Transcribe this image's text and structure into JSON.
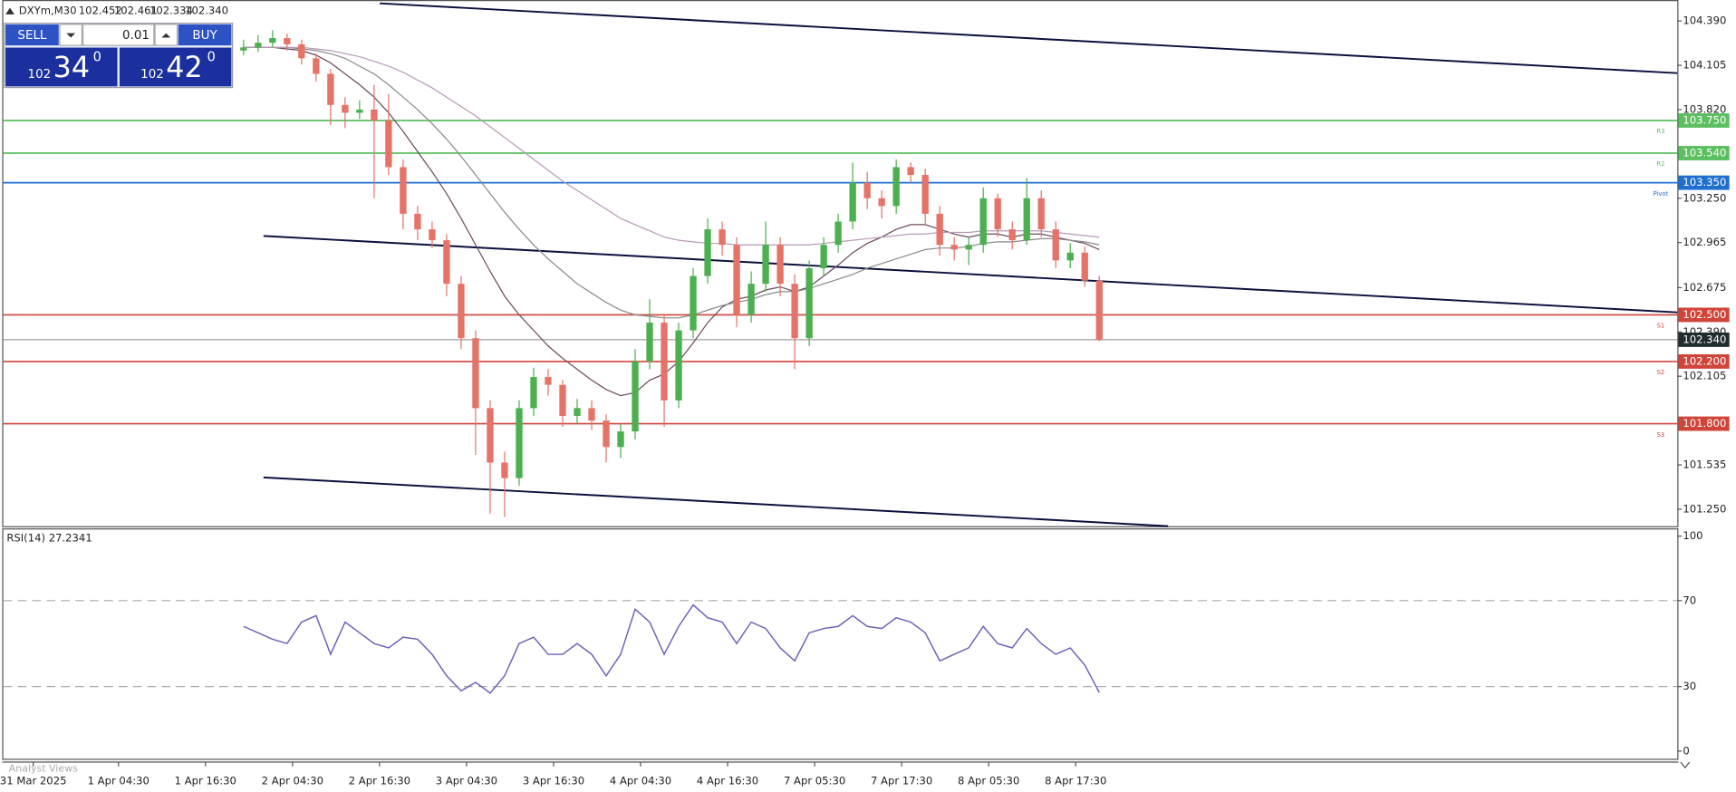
{
  "header": {
    "symbol": "DXYm,M30",
    "ohlc": [
      "102.452",
      "102.461",
      "102.334",
      "102.340"
    ]
  },
  "trade_panel": {
    "sell": "SELL",
    "buy": "BUY",
    "volume": "0.01",
    "sell_price": {
      "big": "102",
      "pips": "34",
      "sup": "0"
    },
    "buy_price": {
      "big": "102",
      "pips": "42",
      "sup": "0"
    }
  },
  "price_chart": {
    "type": "candlestick",
    "ylim": [
      101.141,
      104.525
    ],
    "yticks": [
      {
        "value": 104.39,
        "label": "104.390"
      },
      {
        "value": 104.105,
        "label": "104.105"
      },
      {
        "value": 103.82,
        "label": "103.820"
      },
      {
        "value": 103.25,
        "label": "103.250"
      },
      {
        "value": 102.965,
        "label": "102.965"
      },
      {
        "value": 102.675,
        "label": "102.675"
      },
      {
        "value": 102.39,
        "label": "102.390"
      },
      {
        "value": 102.105,
        "label": "102.105"
      },
      {
        "value": 101.535,
        "label": "101.535"
      },
      {
        "value": 101.25,
        "label": "101.250"
      }
    ],
    "bull_color": "#4caf50",
    "bear_color": "#e57368",
    "candles": [
      [
        104.2,
        104.27,
        104.17,
        104.22
      ],
      [
        104.22,
        104.3,
        104.19,
        104.25
      ],
      [
        104.25,
        104.33,
        104.22,
        104.28
      ],
      [
        104.28,
        104.31,
        104.2,
        104.24
      ],
      [
        104.24,
        104.27,
        104.11,
        104.15
      ],
      [
        104.15,
        104.18,
        104.0,
        104.05
      ],
      [
        104.05,
        104.08,
        103.72,
        103.85
      ],
      [
        103.85,
        103.9,
        103.7,
        103.8
      ],
      [
        103.8,
        103.88,
        103.76,
        103.82
      ],
      [
        103.82,
        103.98,
        103.25,
        103.75
      ],
      [
        103.75,
        103.92,
        103.4,
        103.45
      ],
      [
        103.45,
        103.5,
        103.05,
        103.15
      ],
      [
        103.15,
        103.2,
        102.98,
        103.05
      ],
      [
        103.05,
        103.1,
        102.93,
        102.98
      ],
      [
        102.98,
        103.02,
        102.62,
        102.7
      ],
      [
        102.7,
        102.75,
        102.28,
        102.35
      ],
      [
        102.35,
        102.4,
        101.6,
        101.9
      ],
      [
        101.9,
        101.95,
        101.22,
        101.55
      ],
      [
        101.55,
        101.62,
        101.2,
        101.45
      ],
      [
        101.45,
        101.95,
        101.4,
        101.9
      ],
      [
        101.9,
        102.16,
        101.85,
        102.1
      ],
      [
        102.1,
        102.15,
        101.98,
        102.05
      ],
      [
        102.05,
        102.08,
        101.78,
        101.85
      ],
      [
        101.85,
        101.96,
        101.8,
        101.9
      ],
      [
        101.9,
        101.95,
        101.76,
        101.82
      ],
      [
        101.82,
        101.86,
        101.55,
        101.65
      ],
      [
        101.65,
        101.8,
        101.58,
        101.75
      ],
      [
        101.75,
        102.28,
        101.7,
        102.2
      ],
      [
        102.2,
        102.6,
        102.15,
        102.45
      ],
      [
        102.45,
        102.5,
        101.78,
        101.95
      ],
      [
        101.95,
        102.45,
        101.9,
        102.4
      ],
      [
        102.4,
        102.8,
        102.35,
        102.75
      ],
      [
        102.75,
        103.12,
        102.7,
        103.05
      ],
      [
        103.05,
        103.1,
        102.88,
        102.95
      ],
      [
        102.95,
        103.0,
        102.42,
        102.5
      ],
      [
        102.5,
        102.78,
        102.45,
        102.7
      ],
      [
        102.7,
        103.1,
        102.65,
        102.95
      ],
      [
        102.95,
        103.0,
        102.62,
        102.7
      ],
      [
        102.7,
        102.76,
        102.15,
        102.35
      ],
      [
        102.35,
        102.85,
        102.3,
        102.8
      ],
      [
        102.8,
        103.0,
        102.75,
        102.95
      ],
      [
        102.95,
        103.15,
        102.9,
        103.1
      ],
      [
        103.1,
        103.48,
        103.05,
        103.35
      ],
      [
        103.35,
        103.42,
        103.18,
        103.25
      ],
      [
        103.25,
        103.3,
        103.12,
        103.2
      ],
      [
        103.2,
        103.5,
        103.15,
        103.45
      ],
      [
        103.45,
        103.48,
        103.35,
        103.4
      ],
      [
        103.4,
        103.44,
        103.08,
        103.15
      ],
      [
        103.15,
        103.2,
        102.88,
        102.95
      ],
      [
        102.95,
        103.0,
        102.85,
        102.92
      ],
      [
        102.92,
        103.0,
        102.82,
        102.95
      ],
      [
        102.95,
        103.32,
        102.9,
        103.25
      ],
      [
        103.25,
        103.28,
        103.0,
        103.05
      ],
      [
        103.05,
        103.1,
        102.92,
        102.98
      ],
      [
        102.98,
        103.38,
        102.95,
        103.25
      ],
      [
        103.25,
        103.3,
        103.0,
        103.05
      ],
      [
        103.05,
        103.1,
        102.8,
        102.85
      ],
      [
        102.85,
        102.96,
        102.8,
        102.9
      ],
      [
        102.9,
        102.94,
        102.68,
        102.72
      ],
      [
        102.72,
        102.75,
        102.33,
        102.34
      ]
    ],
    "moving_averages": [
      {
        "color": "#6b4a5e",
        "values": [
          104.22,
          104.22,
          104.22,
          104.21,
          104.2,
          104.17,
          104.12,
          104.05,
          103.98,
          103.9,
          103.8,
          103.68,
          103.55,
          103.42,
          103.28,
          103.12,
          102.95,
          102.78,
          102.62,
          102.5,
          102.4,
          102.3,
          102.22,
          102.15,
          102.08,
          102.02,
          101.98,
          102.0,
          102.08,
          102.12,
          102.2,
          102.32,
          102.45,
          102.55,
          102.6,
          102.62,
          102.66,
          102.68,
          102.65,
          102.68,
          102.75,
          102.82,
          102.9,
          102.96,
          103.0,
          103.05,
          103.08,
          103.08,
          103.05,
          103.02,
          103.0,
          103.02,
          103.02,
          103.0,
          103.02,
          103.02,
          103.0,
          102.98,
          102.96,
          102.92
        ]
      },
      {
        "color": "#8a8a8a",
        "values": [
          104.22,
          104.22,
          104.22,
          104.22,
          104.21,
          104.2,
          104.18,
          104.15,
          104.1,
          104.05,
          103.98,
          103.9,
          103.82,
          103.73,
          103.63,
          103.52,
          103.4,
          103.28,
          103.16,
          103.05,
          102.95,
          102.86,
          102.78,
          102.7,
          102.64,
          102.58,
          102.53,
          102.5,
          102.49,
          102.48,
          102.48,
          102.5,
          102.53,
          102.56,
          102.58,
          102.6,
          102.63,
          102.65,
          102.65,
          102.67,
          102.7,
          102.73,
          102.76,
          102.8,
          102.83,
          102.86,
          102.89,
          102.92,
          102.93,
          102.93,
          102.94,
          102.96,
          102.97,
          102.97,
          102.98,
          102.99,
          102.99,
          102.98,
          102.97,
          102.95
        ]
      },
      {
        "color": "#b79ab8",
        "values": [
          104.22,
          104.22,
          104.22,
          104.22,
          104.22,
          104.21,
          104.2,
          104.18,
          104.16,
          104.13,
          104.1,
          104.06,
          104.01,
          103.96,
          103.9,
          103.84,
          103.78,
          103.71,
          103.64,
          103.57,
          103.5,
          103.43,
          103.36,
          103.3,
          103.24,
          103.18,
          103.12,
          103.08,
          103.04,
          103.0,
          102.98,
          102.97,
          102.96,
          102.96,
          102.95,
          102.95,
          102.95,
          102.95,
          102.95,
          102.95,
          102.96,
          102.97,
          102.98,
          102.99,
          103.0,
          103.01,
          103.02,
          103.02,
          103.03,
          103.03,
          103.03,
          103.04,
          103.04,
          103.04,
          103.04,
          103.04,
          103.03,
          103.02,
          103.01,
          103.0
        ]
      }
    ],
    "levels": [
      {
        "name": "R3",
        "value": 103.75,
        "label": "103.750",
        "color": "#5cbf60"
      },
      {
        "name": "R2",
        "value": 103.54,
        "label": "103.540",
        "color": "#5cbf60"
      },
      {
        "name": "Pivot",
        "value": 103.35,
        "label": "103.350",
        "color": "#1e6fd0"
      },
      {
        "name": "S1",
        "value": 102.5,
        "label": "102.500",
        "color": "#d0453a"
      },
      {
        "name": "S2",
        "value": 102.2,
        "label": "102.200",
        "color": "#d0453a"
      },
      {
        "name": "S3",
        "value": 101.8,
        "label": "101.800",
        "color": "#d0453a"
      }
    ],
    "current_price": {
      "value": 102.34,
      "label": "102.340"
    }
  },
  "rsi": {
    "title": "RSI(14) 27.2341",
    "color": "#6a62b8",
    "ylim": [
      -4.1,
      103.1
    ],
    "yticks": [
      100,
      70,
      30,
      0
    ],
    "levels": [
      70,
      30
    ],
    "values": [
      58,
      55,
      52,
      50,
      60,
      63,
      45,
      60,
      55,
      50,
      48,
      53,
      52,
      45,
      35,
      28,
      32,
      27,
      35,
      50,
      53,
      45,
      45,
      50,
      45,
      35,
      45,
      66,
      60,
      45,
      58,
      68,
      62,
      60,
      50,
      60,
      57,
      48,
      42,
      55,
      57,
      58,
      63,
      58,
      57,
      62,
      60,
      55,
      42,
      45,
      48,
      58,
      50,
      48,
      57,
      50,
      45,
      48,
      40,
      27.2341
    ]
  },
  "time_axis": [
    "31 Mar 2025",
    "1 Apr 04:30",
    "1 Apr 16:30",
    "2 Apr 04:30",
    "2 Apr 16:30",
    "3 Apr 04:30",
    "3 Apr 16:30",
    "4 Apr 04:30",
    "4 Apr 16:30",
    "7 Apr 05:30",
    "7 Apr 17:30",
    "8 Apr 05:30",
    "8 Apr 17:30"
  ],
  "footer": "Analyst Views"
}
